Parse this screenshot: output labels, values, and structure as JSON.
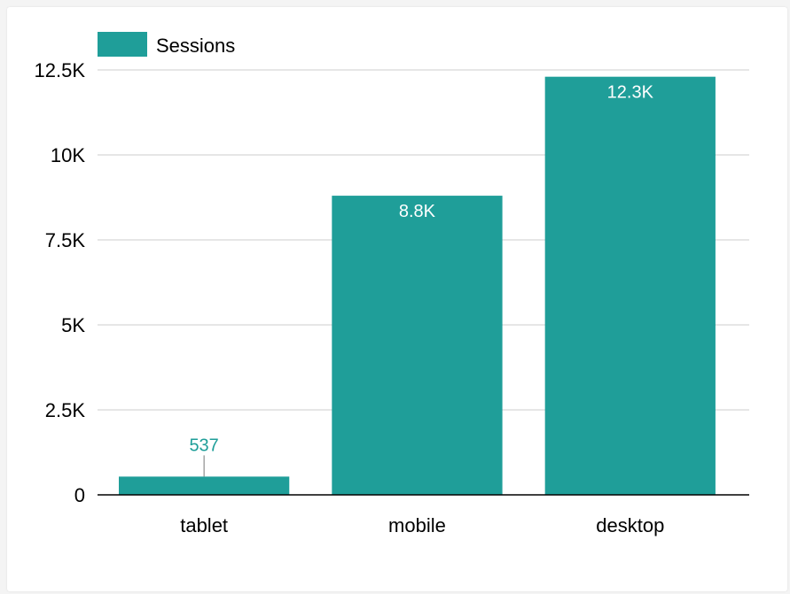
{
  "chart_data": {
    "type": "bar",
    "categories": [
      "tablet",
      "mobile",
      "desktop"
    ],
    "series": [
      {
        "name": "Sessions",
        "values": [
          537,
          8800,
          12300
        ],
        "labels": [
          "537",
          "8.8K",
          "12.3K"
        ]
      }
    ],
    "title": "",
    "xlabel": "",
    "ylabel": "",
    "ylim": [
      0,
      12500
    ],
    "yticks": [
      0,
      2500,
      5000,
      7500,
      10000,
      12500
    ],
    "ytick_labels": [
      "0",
      "2.5K",
      "5K",
      "7.5K",
      "10K",
      "12.5K"
    ],
    "grid": true,
    "legend": "top-left"
  },
  "colors": {
    "bar": "#1f9e99",
    "grid": "#cccccc",
    "axis": "#000000"
  }
}
